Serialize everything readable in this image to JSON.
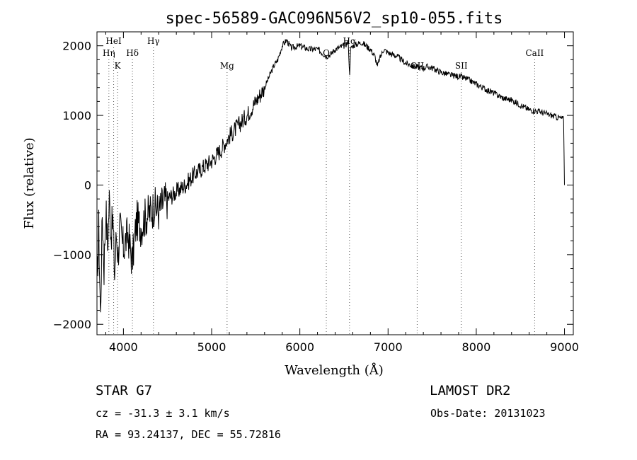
{
  "chart_data": {
    "type": "line",
    "title": "spec-56589-GAC096N56V2_sp10-055.fits",
    "xlabel": "Wavelength (Å)",
    "ylabel": "Flux (relative)",
    "xlim": [
      3700,
      9100
    ],
    "ylim": [
      -2150,
      2200
    ],
    "xticks": [
      4000,
      5000,
      6000,
      7000,
      8000,
      9000
    ],
    "yticks": [
      -2000,
      -1000,
      0,
      1000,
      2000
    ],
    "grid": false,
    "series": [
      {
        "x": [
          3700,
          3720,
          3740,
          3760,
          3780,
          3800,
          3820,
          3840,
          3860,
          3880,
          3900,
          3920,
          3940,
          3960,
          3980,
          4000,
          4050,
          4100,
          4150,
          4200,
          4250,
          4300,
          4350,
          4400,
          4450,
          4500,
          4600,
          4700,
          4800,
          4900,
          5000,
          5100,
          5200,
          5300,
          5400,
          5500,
          5600,
          5700,
          5750,
          5800,
          5850,
          5900,
          6000,
          6100,
          6200,
          6250,
          6300,
          6350,
          6400,
          6500,
          6550,
          6563,
          6575,
          6600,
          6700,
          6800,
          6850,
          6880,
          6900,
          6950,
          7000,
          7100,
          7200,
          7300,
          7400,
          7450,
          7500,
          7600,
          7700,
          7800,
          7900,
          8000,
          8100,
          8200,
          8300,
          8400,
          8500,
          8600,
          8700,
          8800,
          8900,
          8990,
          9000
        ],
        "y": [
          -1500,
          -600,
          -1900,
          -400,
          -1200,
          -300,
          -900,
          -200,
          -700,
          -500,
          -1300,
          -700,
          -1000,
          -600,
          -800,
          -900,
          -700,
          -1100,
          -500,
          -600,
          -450,
          -400,
          -300,
          -380,
          -250,
          -200,
          -100,
          0,
          150,
          250,
          350,
          500,
          700,
          850,
          1000,
          1200,
          1400,
          1700,
          1800,
          2000,
          2080,
          1970,
          2000,
          1950,
          1950,
          1900,
          1850,
          1880,
          1950,
          2000,
          2050,
          1550,
          1950,
          2000,
          2050,
          1950,
          1850,
          1700,
          1800,
          1950,
          1900,
          1850,
          1750,
          1700,
          1680,
          1700,
          1680,
          1620,
          1580,
          1560,
          1520,
          1450,
          1380,
          1320,
          1250,
          1220,
          1150,
          1080,
          1060,
          1020,
          980,
          950,
          0
        ]
      }
    ],
    "line_markers": [
      {
        "label": "HeI",
        "x": 3889,
        "row": 0
      },
      {
        "label": "Hγ",
        "x": 4340,
        "row": 0
      },
      {
        "label": "Hα",
        "x": 6563,
        "row": 0
      },
      {
        "label": "Hη",
        "x": 3835,
        "row": 1
      },
      {
        "label": "Hδ",
        "x": 4102,
        "row": 1
      },
      {
        "label": "O",
        "x": 6300,
        "row": 1
      },
      {
        "label": "CaII",
        "x": 8662,
        "row": 1
      },
      {
        "label": "K",
        "x": 3934,
        "row": 2
      },
      {
        "label": "Mg",
        "x": 5175,
        "row": 2
      },
      {
        "label": "OII",
        "x": 7330,
        "row": 2
      },
      {
        "label": "SII",
        "x": 7830,
        "row": 2
      }
    ]
  },
  "info": {
    "object": "STAR    G7",
    "survey": "LAMOST DR2",
    "cz": "cz = -31.3 ± 3.1 km/s",
    "obs_date": "Obs-Date: 20131023",
    "coords": "RA =  93.24137, DEC =  55.72816"
  }
}
